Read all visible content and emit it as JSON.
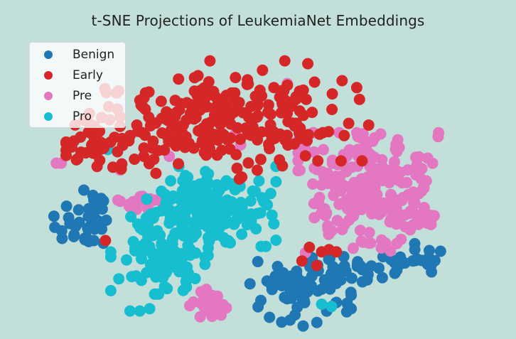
{
  "chart_data": {
    "type": "scatter",
    "title": "t-SNE Projections of LeukemiaNet Embeddings",
    "xlabel": "",
    "ylabel": "",
    "axes_visible": false,
    "grid": false,
    "legend_position": "top-left",
    "background": "#c2e0d9",
    "series": [
      {
        "name": "Benign",
        "color": "#1f77b4",
        "clusters": [
          {
            "center": [
              -66,
              0
            ],
            "spread": [
              6,
              9
            ],
            "count": 40
          },
          {
            "center": [
              20,
              -30
            ],
            "spread": [
              10,
              7
            ],
            "count": 70
          },
          {
            "center": [
              48,
              -20
            ],
            "spread": [
              10,
              4
            ],
            "count": 40
          },
          {
            "center": [
              68,
              -15
            ],
            "spread": [
              6,
              3
            ],
            "count": 18
          }
        ]
      },
      {
        "name": "Early",
        "color": "#d62728",
        "clusters": [
          {
            "center": [
              -30,
              42
            ],
            "spread": [
              20,
              10
            ],
            "count": 150
          },
          {
            "center": [
              10,
              50
            ],
            "spread": [
              18,
              10
            ],
            "count": 130
          },
          {
            "center": [
              -62,
              35
            ],
            "spread": [
              4,
              5
            ],
            "count": 20
          }
        ],
        "points": [
          [
            -58,
            -7
          ],
          [
            25,
            -10
          ],
          [
            30,
            -12
          ],
          [
            36,
            -12
          ],
          [
            28,
            -18
          ],
          [
            22,
            -16
          ],
          [
            33,
            -11
          ]
        ]
      },
      {
        "name": "Pre",
        "color": "#e377c2",
        "clusters": [
          {
            "center": [
              49,
              14
            ],
            "spread": [
              13,
              12
            ],
            "count": 230
          },
          {
            "center": [
              -16,
              -36
            ],
            "spread": [
              3.5,
              4
            ],
            "count": 22
          },
          {
            "center": [
              -42,
              10
            ],
            "spread": [
              5,
              1.5
            ],
            "count": 18
          }
        ],
        "points": [
          [
            -78,
            27
          ],
          [
            -76,
            27
          ],
          [
            -32,
            30
          ],
          [
            -5,
            40
          ],
          [
            -3,
            35
          ],
          [
            16,
            62
          ],
          [
            -52,
            24
          ]
        ]
      },
      {
        "name": "Pro",
        "color": "#17becf",
        "clusters": [
          {
            "center": [
              -15,
              8
            ],
            "spread": [
              12,
              8
            ],
            "count": 180
          },
          {
            "center": [
              -36,
              -13
            ],
            "spread": [
              9,
              8
            ],
            "count": 110
          }
        ],
        "points": [
          [
            -48,
            -38
          ],
          [
            -44,
            -38
          ],
          [
            -40,
            -37
          ],
          [
            34,
            -36
          ],
          [
            30,
            -35
          ],
          [
            -60,
            33
          ],
          [
            -57,
            33
          ]
        ]
      }
    ],
    "xlim": [
      -85,
      90
    ],
    "ylim": [
      -45,
      80
    ]
  }
}
